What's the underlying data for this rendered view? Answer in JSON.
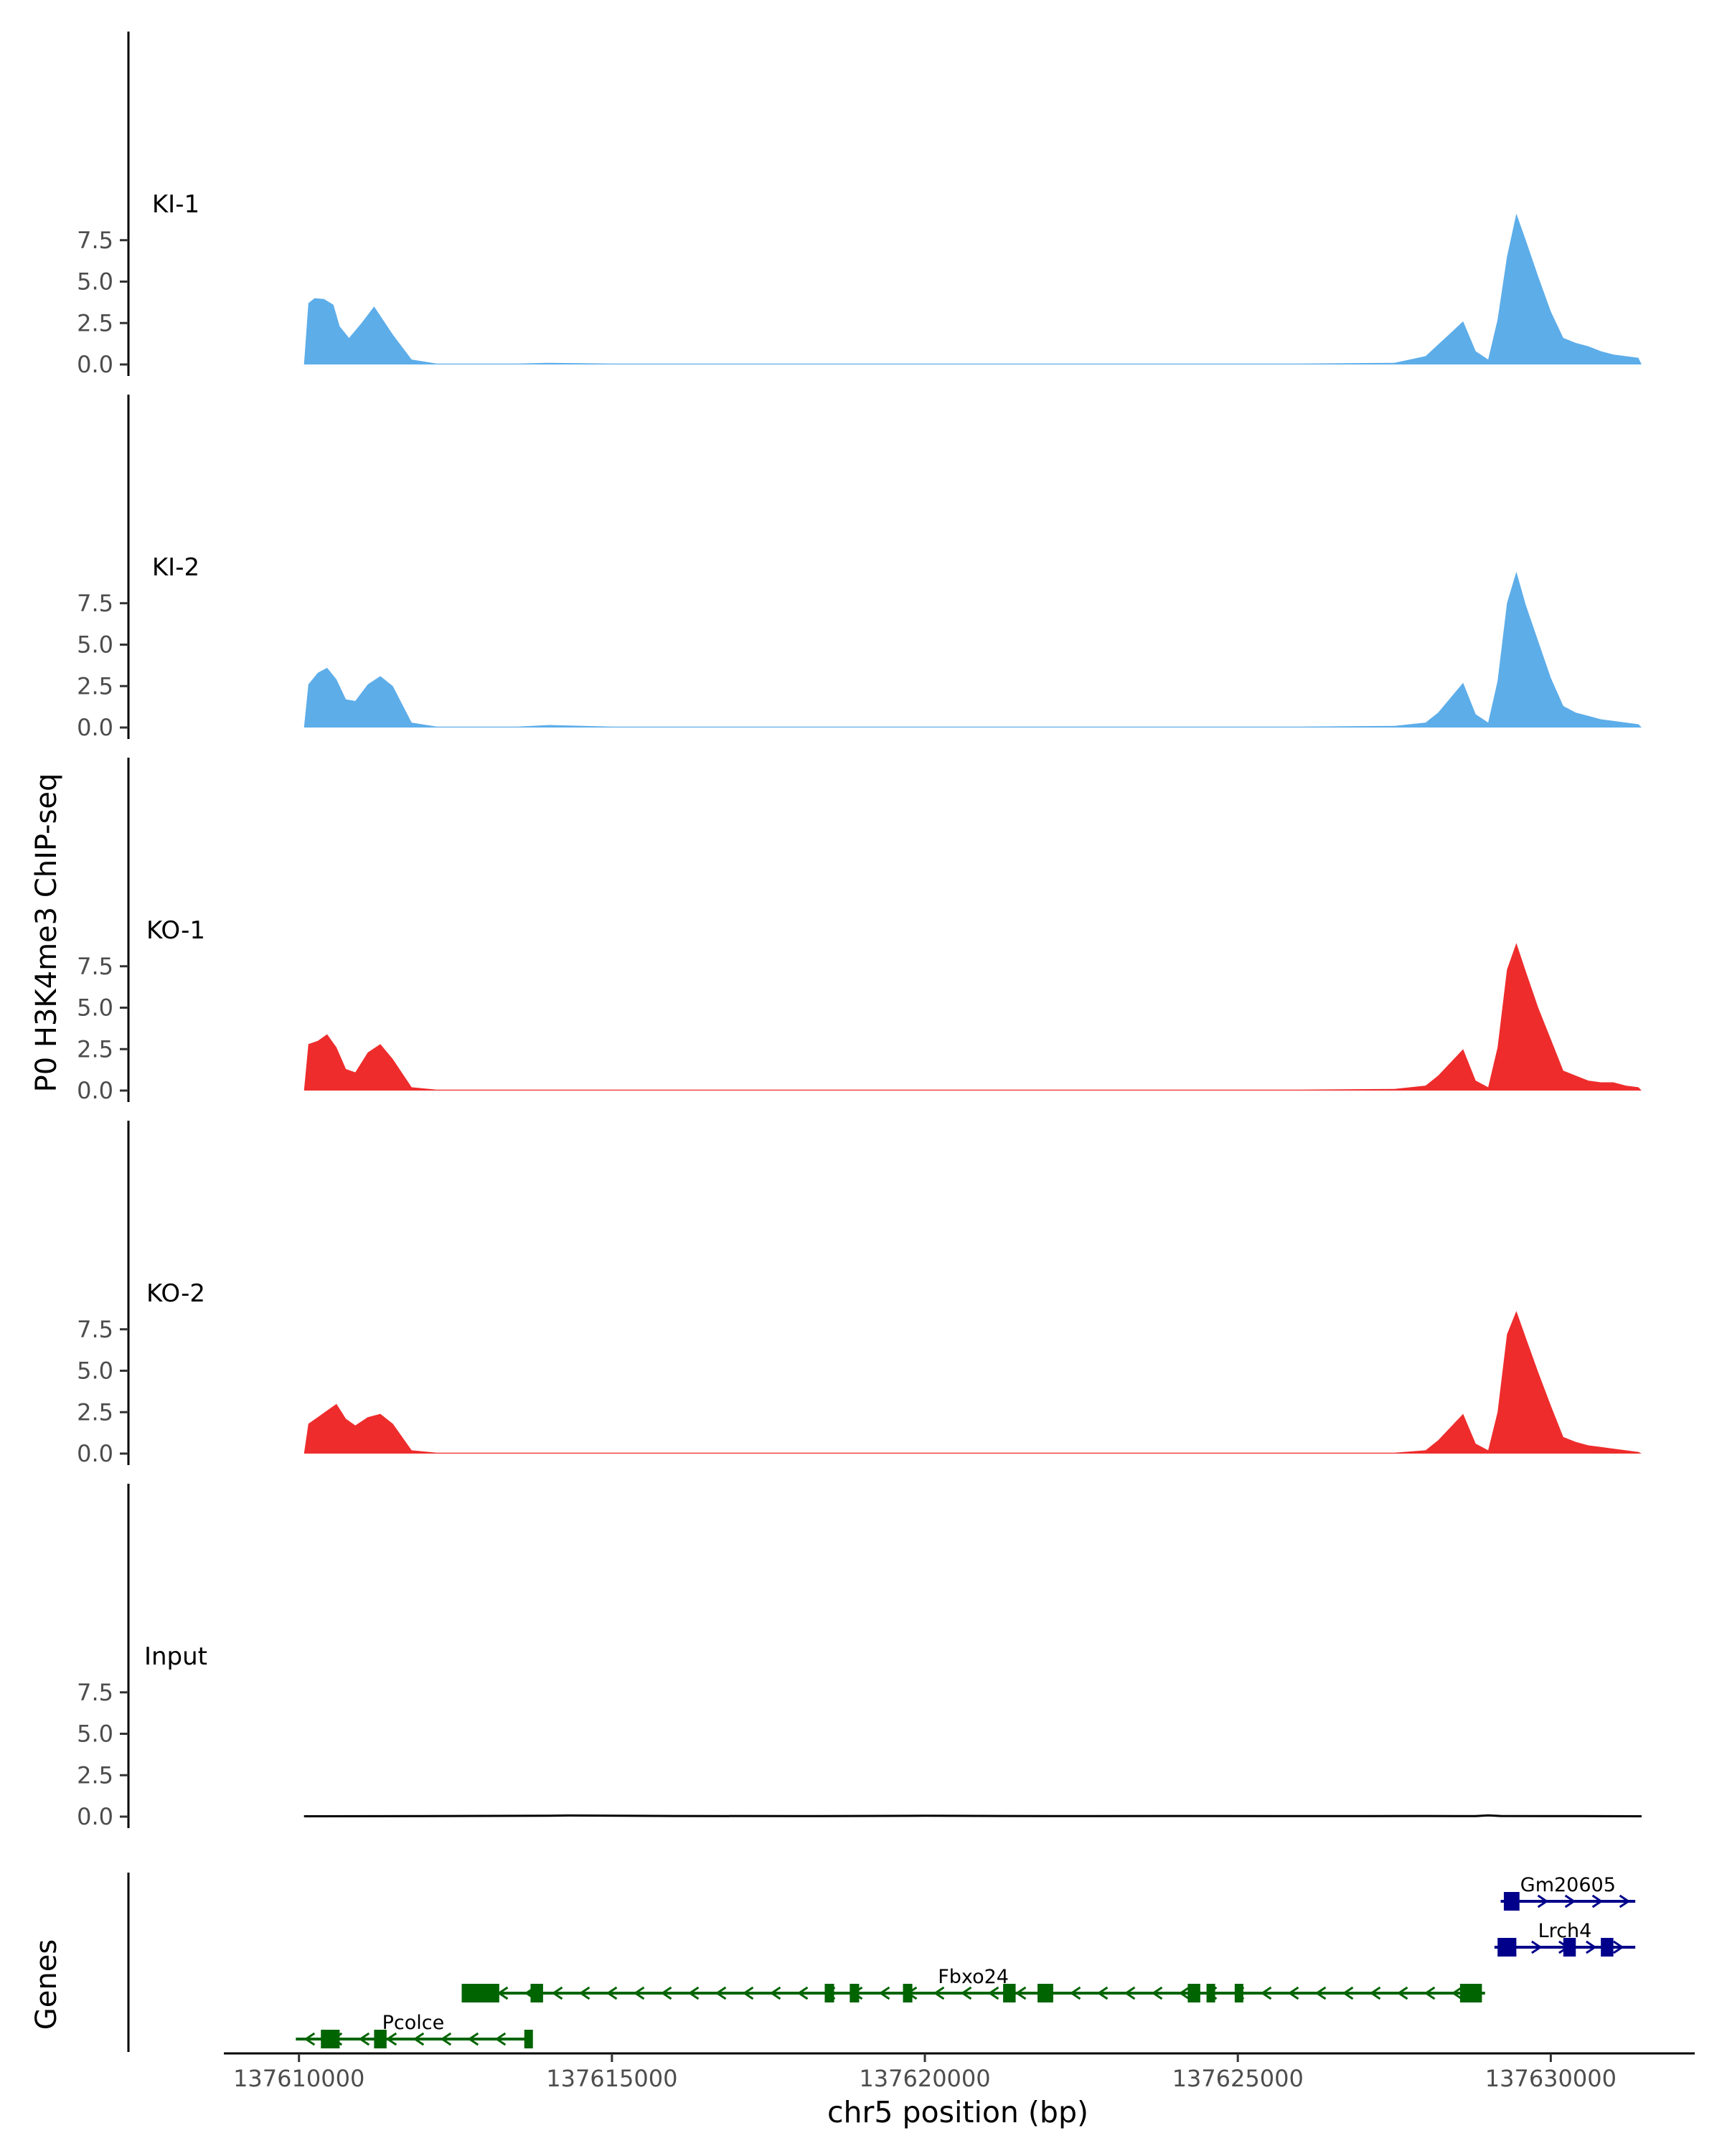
{
  "chart_data": {
    "type": "area",
    "ylabel": "P0 H3K4me3 ChIP-seq",
    "xlabel": "chr5 position (bp)",
    "ylim": [
      0,
      10
    ],
    "xlim": [
      137608800,
      137632300
    ],
    "y_ticks": [
      "0.0",
      "2.5",
      "5.0",
      "7.5"
    ],
    "x_ticks": [
      "137610000",
      "137615000",
      "137620000",
      "137625000",
      "137630000"
    ],
    "grid": false,
    "colors": {
      "KI": "#5dade9",
      "KO": "#ee2c2c",
      "Input": "#000000",
      "gene_minus": "#006400",
      "gene_plus": "#00008b",
      "axis": "#000000"
    },
    "tracks": [
      {
        "name": "KI-1",
        "group": "KI",
        "x": [
          137610080,
          137610150,
          137610250,
          137610400,
          137610550,
          137610650,
          137610800,
          137611000,
          137611200,
          137611500,
          137611800,
          137612200,
          137612800,
          137613500,
          137614000,
          137615000,
          137617000,
          137620000,
          137623000,
          137626000,
          137627500,
          137628000,
          137628200,
          137628400,
          137628600,
          137628800,
          137629000,
          137629150,
          137629300,
          137629450,
          137629600,
          137629800,
          137630000,
          137630200,
          137630400,
          137630600,
          137630800,
          137631000,
          137631200,
          137631400,
          137631450
        ],
        "y": [
          0,
          3.7,
          4.0,
          3.95,
          3.6,
          2.3,
          1.6,
          2.5,
          3.5,
          1.8,
          0.3,
          0.05,
          0.05,
          0.05,
          0.1,
          0.05,
          0.05,
          0.05,
          0.05,
          0.05,
          0.1,
          0.5,
          1.2,
          1.9,
          2.6,
          0.8,
          0.3,
          2.7,
          6.5,
          9.1,
          7.5,
          5.3,
          3.2,
          1.6,
          1.3,
          1.1,
          0.8,
          0.6,
          0.5,
          0.4,
          0
        ]
      },
      {
        "name": "KI-2",
        "group": "KI",
        "x": [
          137610080,
          137610150,
          137610300,
          137610450,
          137610600,
          137610750,
          137610900,
          137611100,
          137611300,
          137611500,
          137611800,
          137612200,
          137612800,
          137613500,
          137614000,
          137615000,
          137617000,
          137620000,
          137623000,
          137626000,
          137627500,
          137628000,
          137628200,
          137628400,
          137628600,
          137628800,
          137629000,
          137629150,
          137629300,
          137629450,
          137629600,
          137629800,
          137630000,
          137630200,
          137630400,
          137630600,
          137630800,
          137631000,
          137631200,
          137631400,
          137631450
        ],
        "y": [
          0,
          2.6,
          3.3,
          3.6,
          2.9,
          1.7,
          1.6,
          2.6,
          3.1,
          2.5,
          0.3,
          0.05,
          0.05,
          0.05,
          0.15,
          0.05,
          0.05,
          0.05,
          0.05,
          0.05,
          0.1,
          0.3,
          0.9,
          1.8,
          2.7,
          0.8,
          0.3,
          2.8,
          7.5,
          9.4,
          7.4,
          5.2,
          3.0,
          1.3,
          0.9,
          0.7,
          0.5,
          0.4,
          0.3,
          0.2,
          0
        ]
      },
      {
        "name": "KO-1",
        "group": "KO",
        "x": [
          137610080,
          137610150,
          137610300,
          137610450,
          137610600,
          137610750,
          137610900,
          137611100,
          137611300,
          137611500,
          137611800,
          137612200,
          137612800,
          137613500,
          137614000,
          137615000,
          137617000,
          137620000,
          137623000,
          137626000,
          137627500,
          137628000,
          137628200,
          137628400,
          137628600,
          137628800,
          137629000,
          137629150,
          137629300,
          137629450,
          137629600,
          137629800,
          137630000,
          137630200,
          137630400,
          137630600,
          137630800,
          137631000,
          137631200,
          137631400,
          137631450
        ],
        "y": [
          0,
          2.8,
          3.0,
          3.4,
          2.6,
          1.3,
          1.1,
          2.3,
          2.8,
          1.9,
          0.2,
          0.05,
          0.05,
          0.05,
          0.05,
          0.05,
          0.05,
          0.05,
          0.05,
          0.05,
          0.1,
          0.3,
          0.9,
          1.7,
          2.5,
          0.6,
          0.2,
          2.6,
          7.3,
          8.9,
          7.2,
          5.0,
          3.1,
          1.2,
          0.9,
          0.6,
          0.5,
          0.5,
          0.3,
          0.2,
          0
        ]
      },
      {
        "name": "KO-2",
        "group": "KO",
        "x": [
          137610080,
          137610150,
          137610300,
          137610450,
          137610600,
          137610750,
          137610900,
          137611100,
          137611300,
          137611500,
          137611800,
          137612200,
          137612800,
          137613500,
          137614000,
          137615000,
          137617000,
          137620000,
          137623000,
          137626000,
          137627500,
          137628000,
          137628200,
          137628400,
          137628600,
          137628800,
          137629000,
          137629150,
          137629300,
          137629450,
          137629600,
          137629800,
          137630000,
          137630200,
          137630400,
          137630600,
          137630800,
          137631000,
          137631200,
          137631400,
          137631450
        ],
        "y": [
          0,
          1.8,
          2.2,
          2.6,
          3.0,
          2.1,
          1.7,
          2.2,
          2.4,
          1.8,
          0.2,
          0.05,
          0.05,
          0.05,
          0.05,
          0.05,
          0.05,
          0.05,
          0.05,
          0.05,
          0.05,
          0.2,
          0.8,
          1.6,
          2.4,
          0.6,
          0.2,
          2.5,
          7.2,
          8.6,
          7.0,
          4.9,
          2.9,
          1.0,
          0.7,
          0.5,
          0.4,
          0.3,
          0.2,
          0.1,
          0
        ]
      },
      {
        "name": "Input",
        "group": "Input",
        "x": [
          137610080,
          137612000,
          137614000,
          137614300,
          137616000,
          137618000,
          137620000,
          137622000,
          137624000,
          137626000,
          137628000,
          137628800,
          137629000,
          137629200,
          137630500,
          137631450
        ],
        "y": [
          0.02,
          0.03,
          0.05,
          0.07,
          0.04,
          0.03,
          0.05,
          0.03,
          0.04,
          0.03,
          0.04,
          0.03,
          0.08,
          0.04,
          0.03,
          0.02
        ]
      }
    ],
    "genes_track_label": "Genes",
    "genes": [
      {
        "name": "Gm20605",
        "strand": "+",
        "start": 137629200,
        "end": 137631350,
        "exons": [
          [
            137629250,
            137629500
          ]
        ]
      },
      {
        "name": "Lrch4",
        "strand": "+",
        "start": 137629100,
        "end": 137631350,
        "exons": [
          [
            137629150,
            137629450
          ],
          [
            137630200,
            137630400
          ],
          [
            137630800,
            137631000
          ]
        ]
      },
      {
        "name": "Fbxo24",
        "strand": "-",
        "start": 137612600,
        "end": 137628950,
        "exons": [
          [
            137612600,
            137613200
          ],
          [
            137613700,
            137613900
          ],
          [
            137618400,
            137618550
          ],
          [
            137618800,
            137618950
          ],
          [
            137619650,
            137619800
          ],
          [
            137621250,
            137621450
          ],
          [
            137621800,
            137622050
          ],
          [
            137624200,
            137624400
          ],
          [
            137624500,
            137624600
          ],
          [
            137624950,
            137625050
          ],
          [
            137628550,
            137628900
          ]
        ]
      },
      {
        "name": "Pcolce",
        "strand": "-",
        "start": 137609950,
        "end": 137613700,
        "exons": [
          [
            137610350,
            137610650
          ],
          [
            137611200,
            137611400
          ],
          [
            137613600,
            137613700
          ]
        ]
      }
    ]
  }
}
